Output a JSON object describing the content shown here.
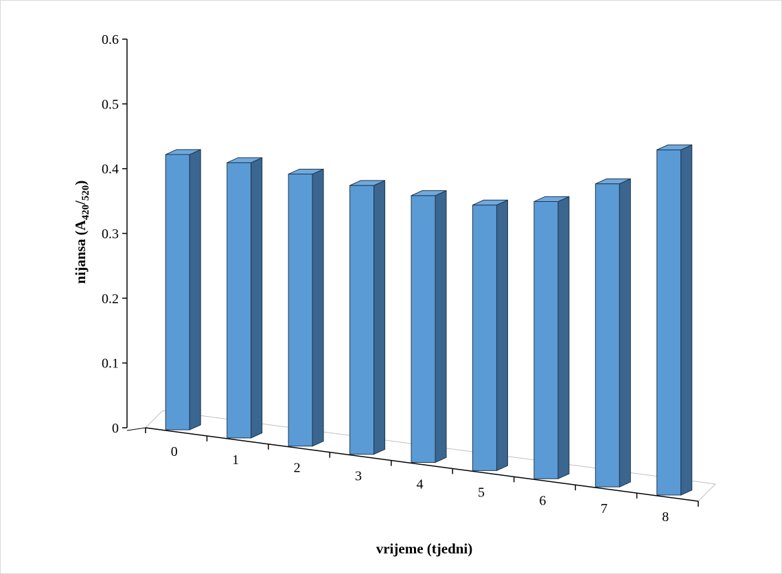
{
  "chart_data": {
    "type": "bar",
    "categories": [
      "0",
      "1",
      "2",
      "3",
      "4",
      "5",
      "6",
      "7",
      "8"
    ],
    "values": [
      0.425,
      0.425,
      0.42,
      0.415,
      0.412,
      0.41,
      0.428,
      0.468,
      0.533
    ],
    "xlabel": "vrijeme (tjedni)",
    "ylabel": {
      "main": "nijansa (A",
      "sub1": "420",
      "slash": "/",
      "sub2": "520",
      "close": ")"
    },
    "yticks": [
      "0",
      "0.1",
      "0.2",
      "0.3",
      "0.4",
      "0.5",
      "0.6"
    ],
    "ylim": [
      0,
      0.6
    ],
    "grid": false,
    "legend": "none",
    "style": "3d-column",
    "colors": {
      "front": "#5b9bd5",
      "side": "#3a6690",
      "top": "#6fa9dd",
      "edge": "#1f3550",
      "axis": "#000000",
      "floor": "#bfbfbf"
    }
  }
}
